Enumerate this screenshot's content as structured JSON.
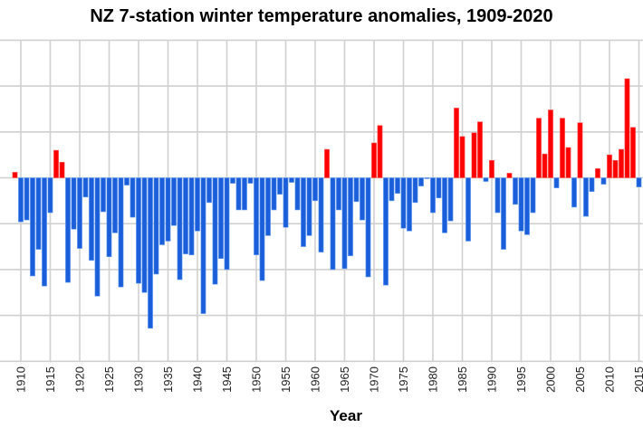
{
  "chart_data": {
    "type": "bar",
    "title": "NZ 7-station winter temperature anomalies, 1909-2020",
    "xlabel": "Year",
    "ylabel": "",
    "ylim": [
      -2.0,
      1.5
    ],
    "y_grid_step": 0.5,
    "x_tick_step": 5,
    "grid": true,
    "legend": "none",
    "colors": {
      "positive": "#ff0000",
      "negative": "#1a5fd9"
    },
    "x_ticks": [
      "1910",
      "1915",
      "1920",
      "1925",
      "1930",
      "1935",
      "1940",
      "1945",
      "1950",
      "1955",
      "1960",
      "1965",
      "1970",
      "1975",
      "1980",
      "1985",
      "1990",
      "1995",
      "2000",
      "2005",
      "2010",
      "2015"
    ],
    "categories": [
      1909,
      1910,
      1911,
      1912,
      1913,
      1914,
      1915,
      1916,
      1917,
      1918,
      1919,
      1920,
      1921,
      1922,
      1923,
      1924,
      1925,
      1926,
      1927,
      1928,
      1929,
      1930,
      1931,
      1932,
      1933,
      1934,
      1935,
      1936,
      1937,
      1938,
      1939,
      1940,
      1941,
      1942,
      1943,
      1944,
      1945,
      1946,
      1947,
      1948,
      1949,
      1950,
      1951,
      1952,
      1953,
      1954,
      1955,
      1956,
      1957,
      1958,
      1959,
      1960,
      1961,
      1962,
      1963,
      1964,
      1965,
      1966,
      1967,
      1968,
      1969,
      1970,
      1971,
      1972,
      1973,
      1974,
      1975,
      1976,
      1977,
      1978,
      1979,
      1980,
      1981,
      1982,
      1983,
      1984,
      1985,
      1986,
      1987,
      1988,
      1989,
      1990,
      1991,
      1992,
      1993,
      1994,
      1995,
      1996,
      1997,
      1998,
      1999,
      2000,
      2001,
      2002,
      2003,
      2004,
      2005,
      2006,
      2007,
      2008,
      2009,
      2010,
      2011,
      2012,
      2013,
      2014,
      2015
    ],
    "values": [
      0.06,
      -0.48,
      -0.46,
      -1.07,
      -0.78,
      -1.18,
      -0.38,
      0.3,
      0.17,
      -1.14,
      -0.56,
      -0.77,
      -0.21,
      -0.9,
      -1.29,
      -0.37,
      -0.86,
      -0.6,
      -1.19,
      -0.08,
      -0.43,
      -1.15,
      -1.25,
      -1.64,
      -1.05,
      -0.73,
      -0.69,
      -0.52,
      -1.11,
      -0.83,
      -0.84,
      -0.58,
      -1.48,
      -0.27,
      -1.16,
      -0.88,
      -1.0,
      -0.06,
      -0.35,
      -0.35,
      -0.06,
      -0.84,
      -1.12,
      -0.63,
      -0.35,
      -0.18,
      -0.54,
      -0.05,
      -0.35,
      -0.75,
      -0.63,
      -0.25,
      -0.81,
      0.31,
      -1.0,
      -0.35,
      -0.99,
      -0.85,
      -0.26,
      -0.46,
      -1.08,
      0.38,
      0.57,
      -1.17,
      -0.25,
      -0.17,
      -0.55,
      -0.58,
      -0.27,
      -0.09,
      -0.01,
      -0.38,
      -0.22,
      -0.6,
      -0.47,
      0.76,
      0.45,
      -0.69,
      0.49,
      0.61,
      -0.04,
      0.19,
      -0.38,
      -0.78,
      0.05,
      -0.29,
      -0.58,
      -0.62,
      -0.38,
      0.65,
      0.26,
      0.74,
      -0.11,
      0.65,
      0.33,
      -0.32,
      0.6,
      -0.42,
      -0.15,
      0.1,
      -0.07,
      0.25,
      0.19,
      0.31,
      1.08,
      0.55,
      -0.1
    ]
  }
}
